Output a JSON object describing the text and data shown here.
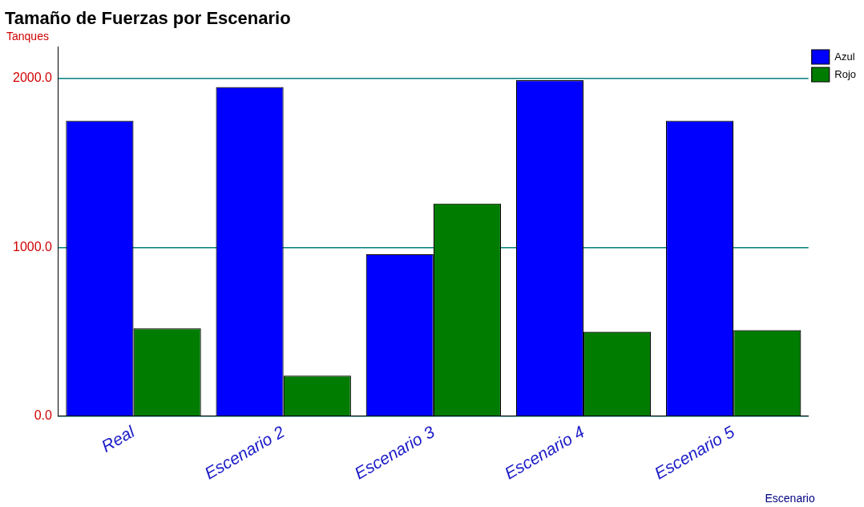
{
  "chart_data": {
    "type": "bar",
    "title": "Tamaño de Fuerzas por Escenario",
    "ylabel": "Tanques",
    "xlabel": "Escenario",
    "categories": [
      "Real",
      "Escenario 2",
      "Escenario 3",
      "Escenario 4",
      "Escenario 5"
    ],
    "series": [
      {
        "name": "Azul",
        "color": "#0000ff",
        "values": [
          1750,
          1950,
          960,
          1990,
          1750
        ]
      },
      {
        "name": "Rojo",
        "color": "#007c00",
        "values": [
          520,
          240,
          1260,
          500,
          510
        ]
      }
    ],
    "ylim": [
      0,
      2190
    ],
    "yticks": [
      {
        "value": 0,
        "label": "0.0"
      },
      {
        "value": 1000,
        "label": "1000.0"
      },
      {
        "value": 2000,
        "label": "2000.0"
      }
    ],
    "grid": "y",
    "legend": "top right"
  }
}
